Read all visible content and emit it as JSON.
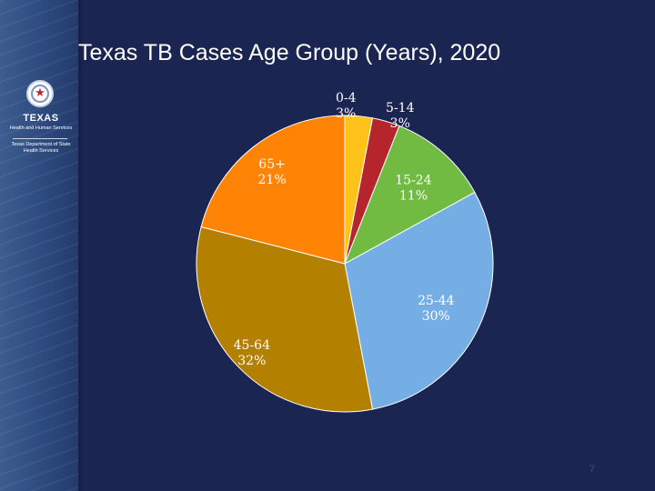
{
  "logo": {
    "name": "TEXAS",
    "agency": "Health and Human Services",
    "department_line1": "Texas Department of State",
    "department_line2": "Health Services"
  },
  "slide_number": "7",
  "chart_data": {
    "type": "pie",
    "title": "Texas TB Cases Age Group (Years), 2020",
    "categories": [
      "0-4",
      "5-14",
      "15-24",
      "25-44",
      "45-64",
      "65+"
    ],
    "values": [
      3,
      3,
      11,
      30,
      32,
      21
    ],
    "value_labels": [
      "3%",
      "3%",
      "11%",
      "30%",
      "32%",
      "21%"
    ],
    "colors": [
      "#ffc21a",
      "#b5252b",
      "#72bb42",
      "#75aee4",
      "#b38000",
      "#ff8305"
    ],
    "start_angle": "12 o'clock",
    "direction": "clockwise"
  }
}
